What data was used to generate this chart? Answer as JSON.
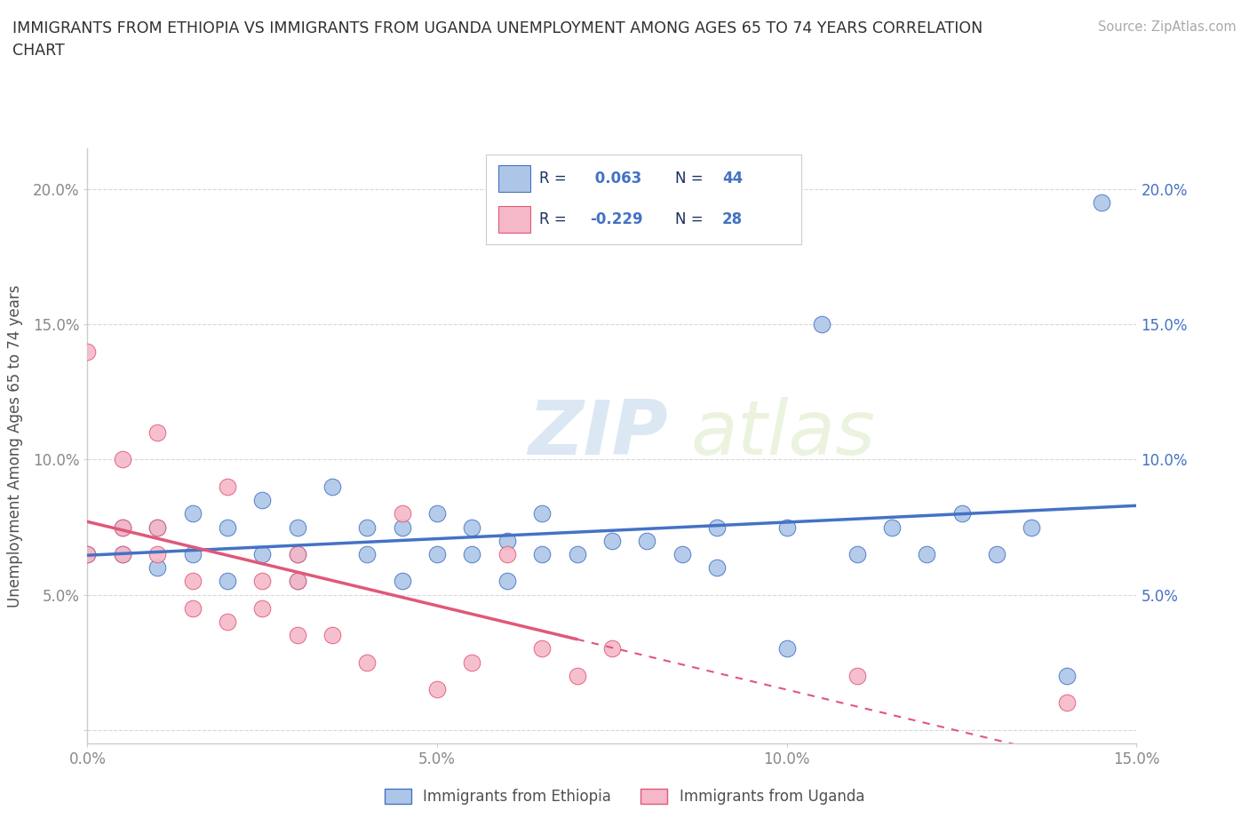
{
  "title_line1": "IMMIGRANTS FROM ETHIOPIA VS IMMIGRANTS FROM UGANDA UNEMPLOYMENT AMONG AGES 65 TO 74 YEARS CORRELATION",
  "title_line2": "CHART",
  "source": "Source: ZipAtlas.com",
  "ylabel": "Unemployment Among Ages 65 to 74 years",
  "r_ethiopia": 0.063,
  "n_ethiopia": 44,
  "r_uganda": -0.229,
  "n_uganda": 28,
  "xlim": [
    0.0,
    0.15
  ],
  "ylim": [
    -0.005,
    0.215
  ],
  "xticks": [
    0.0,
    0.05,
    0.1,
    0.15
  ],
  "xtick_labels": [
    "0.0%",
    "5.0%",
    "10.0%",
    "15.0%"
  ],
  "yticks": [
    0.0,
    0.05,
    0.1,
    0.15,
    0.2
  ],
  "ytick_labels": [
    "",
    "5.0%",
    "10.0%",
    "15.0%",
    "20.0%"
  ],
  "color_ethiopia": "#adc6e8",
  "color_uganda": "#f5b8c8",
  "line_color_ethiopia": "#4472c4",
  "line_color_uganda": "#e05878",
  "watermark_zip": "ZIP",
  "watermark_atlas": "atlas",
  "ethiopia_x": [
    0.0,
    0.005,
    0.005,
    0.01,
    0.01,
    0.015,
    0.015,
    0.02,
    0.02,
    0.025,
    0.025,
    0.03,
    0.03,
    0.03,
    0.035,
    0.04,
    0.04,
    0.045,
    0.045,
    0.05,
    0.05,
    0.055,
    0.055,
    0.06,
    0.06,
    0.065,
    0.065,
    0.07,
    0.075,
    0.08,
    0.085,
    0.09,
    0.09,
    0.1,
    0.1,
    0.105,
    0.11,
    0.115,
    0.12,
    0.125,
    0.13,
    0.135,
    0.14,
    0.145
  ],
  "ethiopia_y": [
    0.065,
    0.065,
    0.075,
    0.06,
    0.075,
    0.065,
    0.08,
    0.055,
    0.075,
    0.065,
    0.085,
    0.055,
    0.065,
    0.075,
    0.09,
    0.065,
    0.075,
    0.055,
    0.075,
    0.065,
    0.08,
    0.065,
    0.075,
    0.055,
    0.07,
    0.065,
    0.08,
    0.065,
    0.07,
    0.07,
    0.065,
    0.06,
    0.075,
    0.03,
    0.075,
    0.15,
    0.065,
    0.075,
    0.065,
    0.08,
    0.065,
    0.075,
    0.02,
    0.195
  ],
  "uganda_x": [
    0.0,
    0.0,
    0.005,
    0.005,
    0.005,
    0.01,
    0.01,
    0.01,
    0.015,
    0.015,
    0.02,
    0.02,
    0.025,
    0.025,
    0.03,
    0.03,
    0.03,
    0.035,
    0.04,
    0.045,
    0.05,
    0.055,
    0.06,
    0.065,
    0.07,
    0.075,
    0.11,
    0.14
  ],
  "uganda_y": [
    0.065,
    0.14,
    0.065,
    0.075,
    0.1,
    0.065,
    0.075,
    0.11,
    0.045,
    0.055,
    0.04,
    0.09,
    0.045,
    0.055,
    0.035,
    0.055,
    0.065,
    0.035,
    0.025,
    0.08,
    0.015,
    0.025,
    0.065,
    0.03,
    0.02,
    0.03,
    0.02,
    0.01
  ],
  "background_color": "#ffffff",
  "grid_color": "#d8d8d8",
  "title_color": "#303030",
  "axis_label_color": "#505050",
  "tick_label_color": "#888888",
  "right_tick_color": "#4472c4",
  "legend_dark_color": "#1a3060"
}
